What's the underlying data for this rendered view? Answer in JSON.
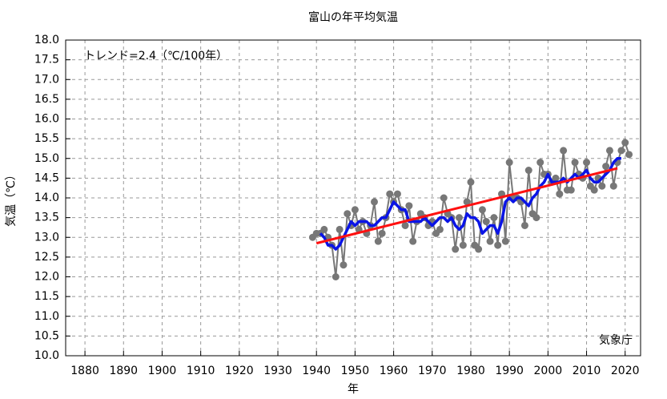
{
  "chart_data": {
    "type": "line",
    "title": "富山の年平均気温",
    "xlabel": "年",
    "ylabel": "気温（℃）",
    "annotations": [
      "トレンド=2.4（℃/100年）",
      "気象庁"
    ],
    "xlim": [
      1875,
      2024
    ],
    "ylim": [
      10,
      18
    ],
    "xticks": [
      1880,
      1890,
      1900,
      1910,
      1920,
      1930,
      1940,
      1950,
      1960,
      1970,
      1980,
      1990,
      2000,
      2010,
      2020
    ],
    "yticks": [
      {
        "value": 10,
        "label": "10.0"
      },
      10.5,
      {
        "value": 11,
        "label": "11.0"
      },
      11.5,
      {
        "value": 12,
        "label": "12.0"
      },
      12.5,
      {
        "value": 13,
        "label": "13.0"
      },
      13.5,
      {
        "value": 14,
        "label": "14.0"
      },
      14.5,
      {
        "value": 15,
        "label": "15.0"
      },
      15.5,
      {
        "value": 16,
        "label": "16.0"
      },
      16.5,
      {
        "value": 17,
        "label": "17.0"
      },
      17.5,
      {
        "value": 18,
        "label": "18.0"
      }
    ],
    "grid": true,
    "series": [
      {
        "color": "#777777",
        "markers": true,
        "width": 2,
        "x": [
          1939,
          1940,
          1941,
          1942,
          1943,
          1944,
          1945,
          1946,
          1947,
          1948,
          1949,
          1950,
          1951,
          1952,
          1953,
          1954,
          1955,
          1956,
          1957,
          1958,
          1959,
          1960,
          1961,
          1962,
          1963,
          1964,
          1965,
          1966,
          1967,
          1968,
          1969,
          1970,
          1971,
          1972,
          1973,
          1974,
          1975,
          1976,
          1977,
          1978,
          1979,
          1980,
          1981,
          1982,
          1983,
          1984,
          1985,
          1986,
          1987,
          1988,
          1989,
          1990,
          1991,
          1992,
          1993,
          1994,
          1995,
          1996,
          1997,
          1998,
          1999,
          2000,
          2001,
          2002,
          2003,
          2004,
          2005,
          2006,
          2007,
          2008,
          2009,
          2010,
          2011,
          2012,
          2013,
          2014,
          2015,
          2016,
          2017,
          2018,
          2019,
          2020,
          2021
        ],
        "values": [
          13.0,
          13.1,
          13.1,
          13.2,
          13.0,
          12.8,
          12.0,
          13.2,
          12.3,
          13.6,
          13.3,
          13.7,
          13.2,
          13.4,
          13.1,
          13.3,
          13.9,
          12.9,
          13.1,
          13.5,
          14.1,
          13.9,
          14.1,
          13.7,
          13.3,
          13.8,
          12.9,
          13.4,
          13.6,
          13.5,
          13.3,
          13.4,
          13.1,
          13.2,
          14.0,
          13.6,
          13.5,
          12.7,
          13.5,
          12.8,
          13.9,
          14.4,
          12.8,
          12.7,
          13.7,
          13.4,
          12.9,
          13.5,
          12.8,
          14.1,
          12.9,
          14.9,
          14.0,
          14.0,
          13.9,
          13.3,
          14.7,
          13.6,
          13.5,
          14.9,
          14.6,
          14.6,
          14.4,
          14.5,
          14.1,
          15.2,
          14.2,
          14.2,
          14.9,
          14.6,
          14.5,
          14.9,
          14.3,
          14.2,
          14.5,
          14.3,
          14.8,
          15.2,
          14.3,
          14.9,
          15.2,
          15.4,
          15.1
        ]
      },
      {
        "color": "#0a14e6",
        "markers": false,
        "width": 3.5,
        "x": [
          1941,
          1942,
          1943,
          1944,
          1945,
          1946,
          1947,
          1948,
          1949,
          1950,
          1951,
          1952,
          1953,
          1954,
          1955,
          1956,
          1957,
          1958,
          1959,
          1960,
          1961,
          1962,
          1963,
          1964,
          1965,
          1966,
          1967,
          1968,
          1969,
          1970,
          1971,
          1972,
          1973,
          1974,
          1975,
          1976,
          1977,
          1978,
          1979,
          1980,
          1981,
          1982,
          1983,
          1984,
          1985,
          1986,
          1987,
          1988,
          1989,
          1990,
          1991,
          1992,
          1993,
          1994,
          1995,
          1996,
          1997,
          1998,
          1999,
          2000,
          2001,
          2002,
          2003,
          2004,
          2005,
          2006,
          2007,
          2008,
          2009,
          2010,
          2011,
          2012,
          2013,
          2014,
          2015,
          2016,
          2017,
          2018,
          2019
        ],
        "values": [
          13.1,
          13.0,
          12.8,
          12.8,
          12.7,
          12.8,
          13.0,
          13.2,
          13.4,
          13.3,
          13.4,
          13.4,
          13.4,
          13.3,
          13.3,
          13.4,
          13.5,
          13.5,
          13.7,
          13.9,
          13.8,
          13.7,
          13.7,
          13.4,
          13.4,
          13.4,
          13.4,
          13.5,
          13.4,
          13.3,
          13.4,
          13.5,
          13.5,
          13.4,
          13.5,
          13.3,
          13.2,
          13.3,
          13.6,
          13.5,
          13.5,
          13.4,
          13.1,
          13.2,
          13.3,
          13.3,
          13.1,
          13.4,
          13.9,
          14.0,
          13.9,
          14.0,
          14.0,
          13.9,
          13.8,
          14.0,
          14.1,
          14.3,
          14.4,
          14.6,
          14.4,
          14.4,
          14.4,
          14.5,
          14.4,
          14.5,
          14.6,
          14.5,
          14.6,
          14.7,
          14.5,
          14.4,
          14.4,
          14.5,
          14.6,
          14.7,
          14.9,
          15.0,
          15.0
        ]
      },
      {
        "color": "#ff1010",
        "markers": false,
        "width": 3,
        "x": [
          1940,
          2018
        ],
        "values": [
          12.85,
          14.75
        ]
      }
    ]
  }
}
